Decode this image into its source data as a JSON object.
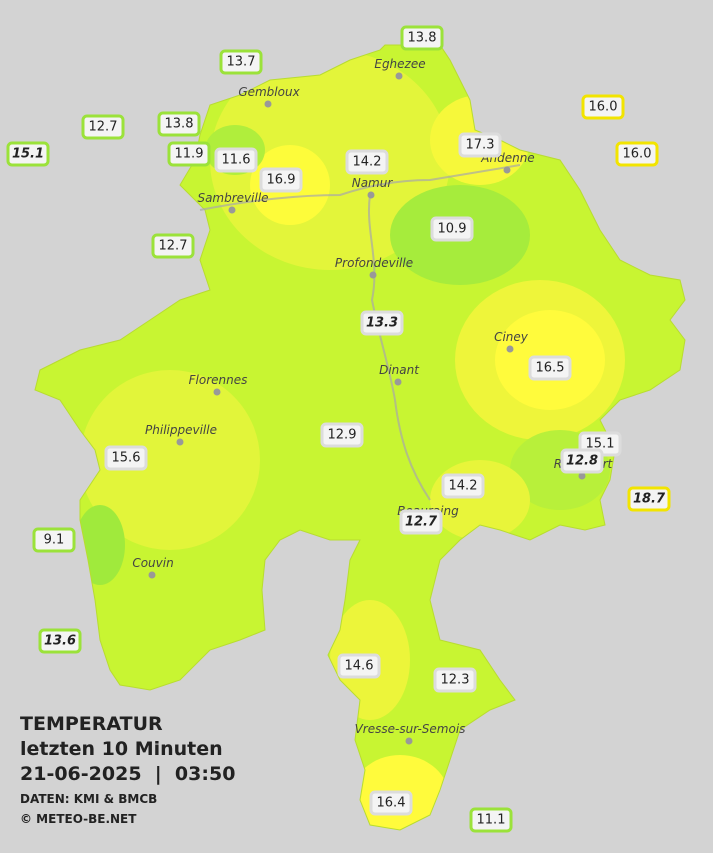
{
  "title": {
    "line1": "TEMPERATUR",
    "line2": "letzten 10 Minuten",
    "line3": "21-06-2025  |  03:50",
    "source": "DATEN: KMI & BMCB",
    "copyright": "© METEO-BE.NET"
  },
  "cities": [
    "Eghezee",
    "Gembloux",
    "Andenne",
    "Namur",
    "Sambreville",
    "Profondeville",
    "Ciney",
    "Dinant",
    "Florennes",
    "Philippeville",
    "Rochefort",
    "Beauraing",
    "Couvin",
    "Vresse-sur-Semois"
  ],
  "stations": [
    "13.8",
    "13.7",
    "16.0",
    "12.7",
    "13.8",
    "15.1",
    "11.9",
    "11.6",
    "16.0",
    "17.3",
    "14.2",
    "16.9",
    "10.9",
    "12.7",
    "13.3",
    "16.5",
    "12.9",
    "15.1",
    "12.8",
    "15.6",
    "18.7",
    "14.2",
    "12.7",
    "9.1",
    "13.6",
    "14.6",
    "12.3",
    "16.4",
    "11.1"
  ]
}
